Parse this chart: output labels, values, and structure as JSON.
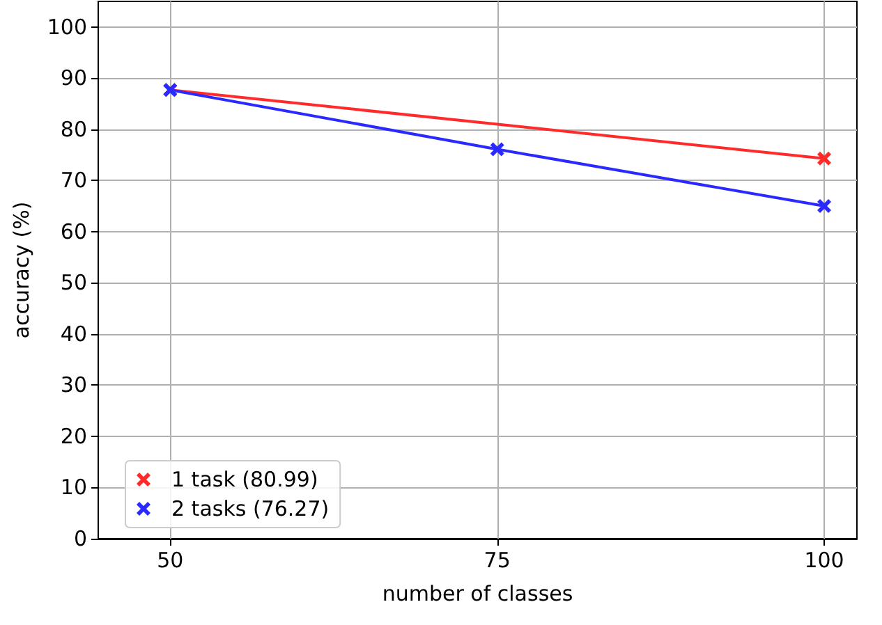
{
  "chart_data": {
    "type": "line",
    "xlabel": "number of classes",
    "ylabel": "accuracy (%)",
    "series": [
      {
        "name": "1 task (80.99)",
        "color": "#ff2a2a",
        "x": [
          50,
          100
        ],
        "values": [
          87.7,
          74.3
        ]
      },
      {
        "name": "2 tasks (76.27)",
        "color": "#2a2aff",
        "x": [
          50,
          75,
          100
        ],
        "values": [
          87.7,
          76.1,
          65.0
        ]
      }
    ],
    "xlim": [
      44.5,
      102.5
    ],
    "xticks": [
      50,
      75,
      100
    ],
    "ylim": [
      0,
      105
    ],
    "yticks": [
      0,
      10,
      20,
      30,
      40,
      50,
      60,
      70,
      80,
      90,
      100
    ],
    "grid": true,
    "legend": "bottom left",
    "marker": "cross",
    "line_style": "solid"
  }
}
